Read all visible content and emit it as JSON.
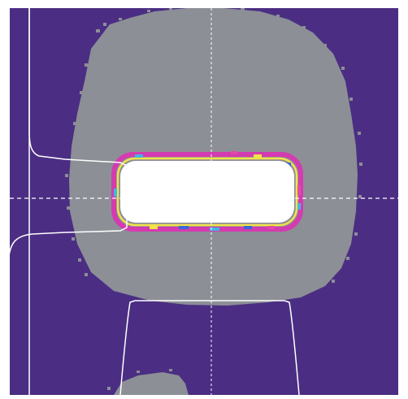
{
  "viewer": {
    "colors": {
      "page_background": "#ffffff",
      "field_background": "#4b2e83",
      "halo": "#8c8f96",
      "core": "#ffffff",
      "core_rim_pink": "#d43bb0",
      "core_rim_magenta": "#e24aa8",
      "core_rim_yellow": "#f2e24b",
      "core_rim_cyan": "#3fb8e6",
      "core_rim_blue": "#3b67d8",
      "crosshair": "#ffffff",
      "profile_line": "#ffffff",
      "lower_blob": "#8c8f96"
    },
    "icons": {
      "crosshair": "crosshair-icon",
      "profile_vertical": "vertical-profile-curve",
      "profile_horizontal": "horizontal-profile-curve"
    }
  }
}
